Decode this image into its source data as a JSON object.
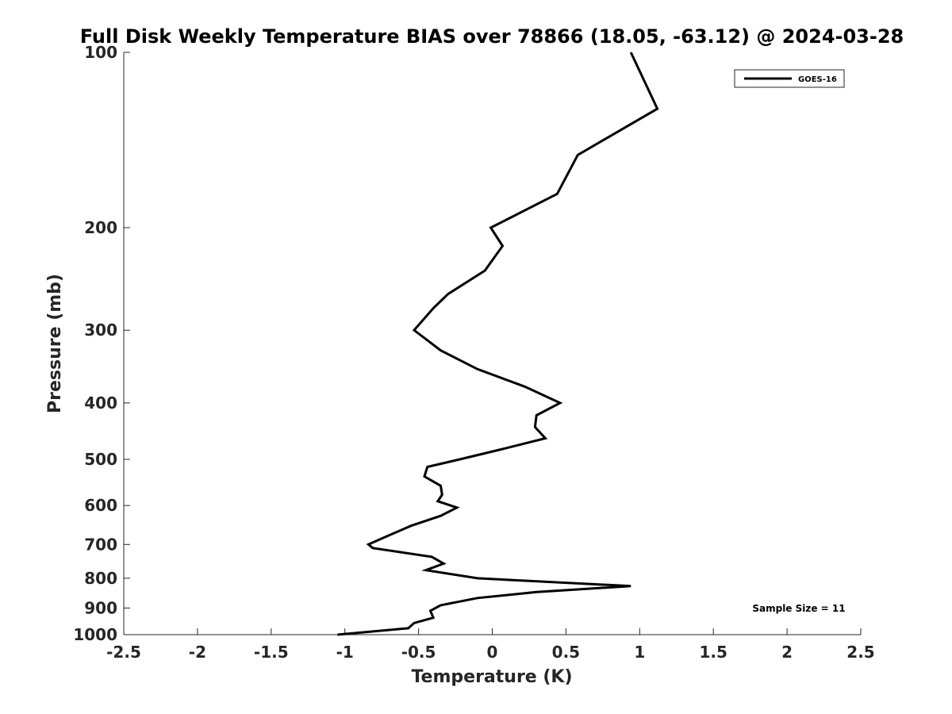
{
  "chart_data": {
    "type": "line",
    "title": "Full Disk Weekly Temperature BIAS over 78866 (18.05, -63.12) @ 2024-03-28",
    "xlabel": "Temperature (K)",
    "ylabel": "Pressure (mb)",
    "xlim": [
      -2.5,
      2.5
    ],
    "ylim": [
      100,
      1000
    ],
    "y_scale": "log",
    "y_reversed": true,
    "grid": false,
    "x_ticks": [
      -2.5,
      -2,
      -1.5,
      -1,
      -0.5,
      0,
      0.5,
      1,
      1.5,
      2,
      2.5
    ],
    "x_tick_labels": [
      "-2.5",
      "-2",
      "-1.5",
      "-1",
      "-0.5",
      "0",
      "0.5",
      "1",
      "1.5",
      "2",
      "2.5"
    ],
    "y_ticks": [
      100,
      200,
      300,
      400,
      500,
      600,
      700,
      800,
      900,
      1000
    ],
    "y_tick_labels": [
      "100",
      "200",
      "300",
      "400",
      "500",
      "600",
      "700",
      "800",
      "900",
      "1000"
    ],
    "legend_position": "top-right",
    "series": [
      {
        "name": "GOES-16",
        "color": "#000000",
        "points": [
          {
            "x": 0.94,
            "p": 100
          },
          {
            "x": 1.12,
            "p": 125
          },
          {
            "x": 0.58,
            "p": 150
          },
          {
            "x": 0.44,
            "p": 175
          },
          {
            "x": -0.01,
            "p": 200
          },
          {
            "x": 0.07,
            "p": 215
          },
          {
            "x": -0.05,
            "p": 237
          },
          {
            "x": -0.3,
            "p": 260
          },
          {
            "x": -0.4,
            "p": 275
          },
          {
            "x": -0.53,
            "p": 300
          },
          {
            "x": -0.35,
            "p": 325
          },
          {
            "x": -0.1,
            "p": 350
          },
          {
            "x": 0.22,
            "p": 375
          },
          {
            "x": 0.46,
            "p": 400
          },
          {
            "x": 0.3,
            "p": 420
          },
          {
            "x": 0.29,
            "p": 440
          },
          {
            "x": 0.36,
            "p": 460
          },
          {
            "x": 0.07,
            "p": 480
          },
          {
            "x": -0.22,
            "p": 500
          },
          {
            "x": -0.44,
            "p": 515
          },
          {
            "x": -0.46,
            "p": 535
          },
          {
            "x": -0.35,
            "p": 555
          },
          {
            "x": -0.34,
            "p": 575
          },
          {
            "x": -0.37,
            "p": 590
          },
          {
            "x": -0.24,
            "p": 605
          },
          {
            "x": -0.35,
            "p": 625
          },
          {
            "x": -0.55,
            "p": 650
          },
          {
            "x": -0.7,
            "p": 675
          },
          {
            "x": -0.84,
            "p": 700
          },
          {
            "x": -0.81,
            "p": 710
          },
          {
            "x": -0.41,
            "p": 735
          },
          {
            "x": -0.33,
            "p": 755
          },
          {
            "x": -0.45,
            "p": 775
          },
          {
            "x": -0.1,
            "p": 800
          },
          {
            "x": 0.94,
            "p": 825
          },
          {
            "x": 0.3,
            "p": 845
          },
          {
            "x": -0.1,
            "p": 865
          },
          {
            "x": -0.35,
            "p": 890
          },
          {
            "x": -0.42,
            "p": 910
          },
          {
            "x": -0.4,
            "p": 935
          },
          {
            "x": -0.53,
            "p": 955
          },
          {
            "x": -0.57,
            "p": 975
          },
          {
            "x": -1.05,
            "p": 1000
          }
        ]
      }
    ],
    "annotation": "Sample Size = 11"
  }
}
